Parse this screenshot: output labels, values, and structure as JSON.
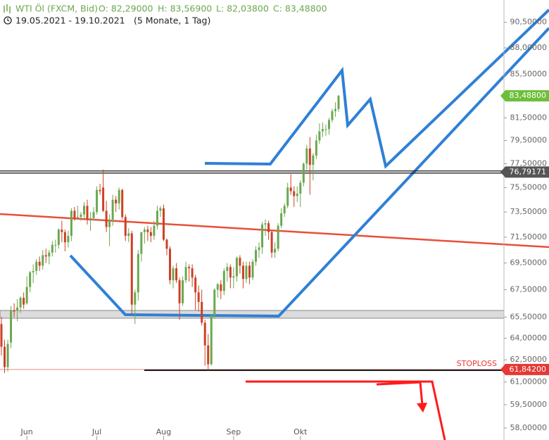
{
  "chart_data": {
    "type": "candlestick",
    "title": "WTI Öl (FXCM, Bid)",
    "ohlc_labels": [
      "O: 82,29000",
      "H: 83,56900",
      "L: 82,03800",
      "C: 83,48800"
    ],
    "subtitle": "19.05.2021 - 19.10.2021",
    "period": "(5 Monate, 1 Tag)",
    "annotation": "STOPLOSS",
    "log_scale": true,
    "grid": false,
    "up_color": "#6aa84f",
    "down_color": "#cc4125",
    "categories": [
      null,
      null,
      null,
      null,
      null,
      null,
      null,
      null,
      "Jun",
      null,
      null,
      null,
      null,
      null,
      null,
      null,
      null,
      null,
      null,
      null,
      null,
      null,
      null,
      null,
      null,
      null,
      null,
      null,
      null,
      null,
      "Jul",
      null,
      null,
      null,
      null,
      null,
      null,
      null,
      null,
      null,
      null,
      null,
      null,
      null,
      null,
      null,
      null,
      null,
      null,
      null,
      null,
      "Aug",
      null,
      null,
      null,
      null,
      null,
      null,
      null,
      null,
      null,
      null,
      null,
      null,
      null,
      null,
      null,
      null,
      null,
      null,
      null,
      null,
      null,
      "Sep",
      null,
      null,
      null,
      null,
      null,
      null,
      null,
      null,
      null,
      null,
      null,
      null,
      null,
      null,
      null,
      null,
      null,
      null,
      null,
      null,
      "Okt",
      null,
      null,
      null,
      null,
      null,
      null,
      null,
      null,
      null,
      null,
      null,
      null
    ],
    "open": [
      65.0,
      63.4,
      62.0,
      63.7,
      66.0,
      66.0,
      66.2,
      66.9,
      66.5,
      67.7,
      68.8,
      68.9,
      69.6,
      69.3,
      70.1,
      70.0,
      70.3,
      70.9,
      70.9,
      72.1,
      71.9,
      71.1,
      71.6,
      73.6,
      73.0,
      73.1,
      73.3,
      74.0,
      72.9,
      73.0,
      73.5,
      75.3,
      75.5,
      73.6,
      72.3,
      72.9,
      74.5,
      74.2,
      75.3,
      73.1,
      71.6,
      71.8,
      66.4,
      67.3,
      70.2,
      71.9,
      72.1,
      71.9,
      71.6,
      72.4,
      73.6,
      73.8,
      71.3,
      70.6,
      68.2,
      69.1,
      68.2,
      66.5,
      68.2,
      69.2,
      69.1,
      68.4,
      67.3,
      66.6,
      65.1,
      63.5,
      62.2,
      65.6,
      67.5,
      67.9,
      67.4,
      68.9,
      69.2,
      68.4,
      68.5,
      69.9,
      69.3,
      68.3,
      69.3,
      68.4,
      69.6,
      70.5,
      70.7,
      72.5,
      72.6,
      71.9,
      70.3,
      70.6,
      72.4,
      73.4,
      74.0,
      75.5,
      75.2,
      74.8,
      75.0,
      75.9,
      77.5,
      78.8,
      77.4,
      78.2,
      79.5,
      80.3,
      80.5,
      80.5,
      81.3,
      82.1,
      82.29
    ],
    "high": [
      65.5,
      63.9,
      63.9,
      66.3,
      66.5,
      66.8,
      67.0,
      67.3,
      68.5,
      68.9,
      69.4,
      69.8,
      70.0,
      70.5,
      70.6,
      70.5,
      71.2,
      71.3,
      72.2,
      72.8,
      72.1,
      72.0,
      73.8,
      73.9,
      74.0,
      73.5,
      74.3,
      74.5,
      73.5,
      73.9,
      75.6,
      75.8,
      77.0,
      74.4,
      73.3,
      74.9,
      74.8,
      75.5,
      75.4,
      73.3,
      72.2,
      72.0,
      67.5,
      70.5,
      71.9,
      72.3,
      72.4,
      72.3,
      72.8,
      74.0,
      74.0,
      74.1,
      71.4,
      70.8,
      69.3,
      69.5,
      68.4,
      68.5,
      69.6,
      69.4,
      69.4,
      68.6,
      67.8,
      67.5,
      65.3,
      64.3,
      65.7,
      67.6,
      68.0,
      68.2,
      69.1,
      69.5,
      69.4,
      69.2,
      70.0,
      70.1,
      69.6,
      69.6,
      69.6,
      69.8,
      70.8,
      71.1,
      72.7,
      72.9,
      72.8,
      72.0,
      71.1,
      72.6,
      73.8,
      74.2,
      75.9,
      76.6,
      75.6,
      75.6,
      76.1,
      77.6,
      79.1,
      79.8,
      78.4,
      80.0,
      81.0,
      81.1,
      80.9,
      81.5,
      82.3,
      82.9,
      83.569
    ],
    "low": [
      62.8,
      61.6,
      61.7,
      63.3,
      65.5,
      65.2,
      65.8,
      66.1,
      66.4,
      67.3,
      68.0,
      68.6,
      68.9,
      69.0,
      69.5,
      69.4,
      70.0,
      70.3,
      70.6,
      71.1,
      70.4,
      70.7,
      71.2,
      72.8,
      72.9,
      72.8,
      73.0,
      72.5,
      72.0,
      72.8,
      73.3,
      74.9,
      73.5,
      71.9,
      70.8,
      72.4,
      73.5,
      73.7,
      72.9,
      71.2,
      71.1,
      65.7,
      65.0,
      66.7,
      69.6,
      71.0,
      71.2,
      71.1,
      71.3,
      72.1,
      73.1,
      71.2,
      70.1,
      67.9,
      67.6,
      68.0,
      65.3,
      66.3,
      68.0,
      68.1,
      67.7,
      66.0,
      65.9,
      64.9,
      62.1,
      61.8,
      62.1,
      65.4,
      66.9,
      66.8,
      67.1,
      68.1,
      67.6,
      67.6,
      68.1,
      68.7,
      67.6,
      68.0,
      67.9,
      68.2,
      69.3,
      69.9,
      70.2,
      71.6,
      71.3,
      69.9,
      69.9,
      70.4,
      72.2,
      73.1,
      73.8,
      74.9,
      73.9,
      74.3,
      73.9,
      75.6,
      77.0,
      74.9,
      76.1,
      77.9,
      79.2,
      79.8,
      79.9,
      80.0,
      81.1,
      81.6,
      82.038
    ],
    "close": [
      63.4,
      62.0,
      63.6,
      66.0,
      65.9,
      66.2,
      66.9,
      66.4,
      67.7,
      68.8,
      68.9,
      69.6,
      69.3,
      70.1,
      70.0,
      70.3,
      70.9,
      70.9,
      72.1,
      71.9,
      71.1,
      71.6,
      73.6,
      73.0,
      73.1,
      73.3,
      74.0,
      72.9,
      73.0,
      73.5,
      75.3,
      75.2,
      73.6,
      72.3,
      72.9,
      74.5,
      74.2,
      75.3,
      73.1,
      71.6,
      71.8,
      66.4,
      67.3,
      70.2,
      71.9,
      72.1,
      71.9,
      71.6,
      72.4,
      73.6,
      73.8,
      71.3,
      70.6,
      68.2,
      69.1,
      68.2,
      66.5,
      68.2,
      69.2,
      69.1,
      68.4,
      67.3,
      66.6,
      65.1,
      63.5,
      62.2,
      65.6,
      67.5,
      67.9,
      67.4,
      68.9,
      69.2,
      68.4,
      68.5,
      69.9,
      69.3,
      68.3,
      69.3,
      68.4,
      69.6,
      70.5,
      70.7,
      72.5,
      72.6,
      71.9,
      70.3,
      70.6,
      72.4,
      73.4,
      74.0,
      75.5,
      75.2,
      74.8,
      75.0,
      75.9,
      77.5,
      78.8,
      77.4,
      78.2,
      79.5,
      80.3,
      80.5,
      80.5,
      81.3,
      82.1,
      82.3,
      83.488
    ],
    "ylim": [
      57.24,
      92.74
    ],
    "yticks": [
      {
        "value": 90.5,
        "label": "90,50000"
      },
      {
        "value": 88,
        "label": "88,00000"
      },
      {
        "value": 85.5,
        "label": "85,50000"
      },
      {
        "value": 81.5,
        "label": "81,50000"
      },
      {
        "value": 79.5,
        "label": "79,50000"
      },
      {
        "value": 77.5,
        "label": "77,50000"
      },
      {
        "value": 75.5,
        "label": "75,50000"
      },
      {
        "value": 73.5,
        "label": "73,50000"
      },
      {
        "value": 71.5,
        "label": "71,50000"
      },
      {
        "value": 69.5,
        "label": "69,50000"
      },
      {
        "value": 67.5,
        "label": "67,50000"
      },
      {
        "value": 65.5,
        "label": "65,50000"
      },
      {
        "value": 64,
        "label": "64,00000"
      },
      {
        "value": 62.5,
        "label": "62,50000"
      },
      {
        "value": 61,
        "label": "61,00000"
      },
      {
        "value": 59.5,
        "label": "59,50000"
      },
      {
        "value": 58,
        "label": "58,00000"
      }
    ],
    "price_labels": [
      {
        "value": 83.488,
        "label": "83,48800",
        "color": "#6cbf3a"
      },
      {
        "value": 76.79171,
        "label": "76,79171",
        "color": "#555555"
      },
      {
        "value": 61.842,
        "label": "61,84200",
        "color": "#e53935"
      }
    ]
  }
}
